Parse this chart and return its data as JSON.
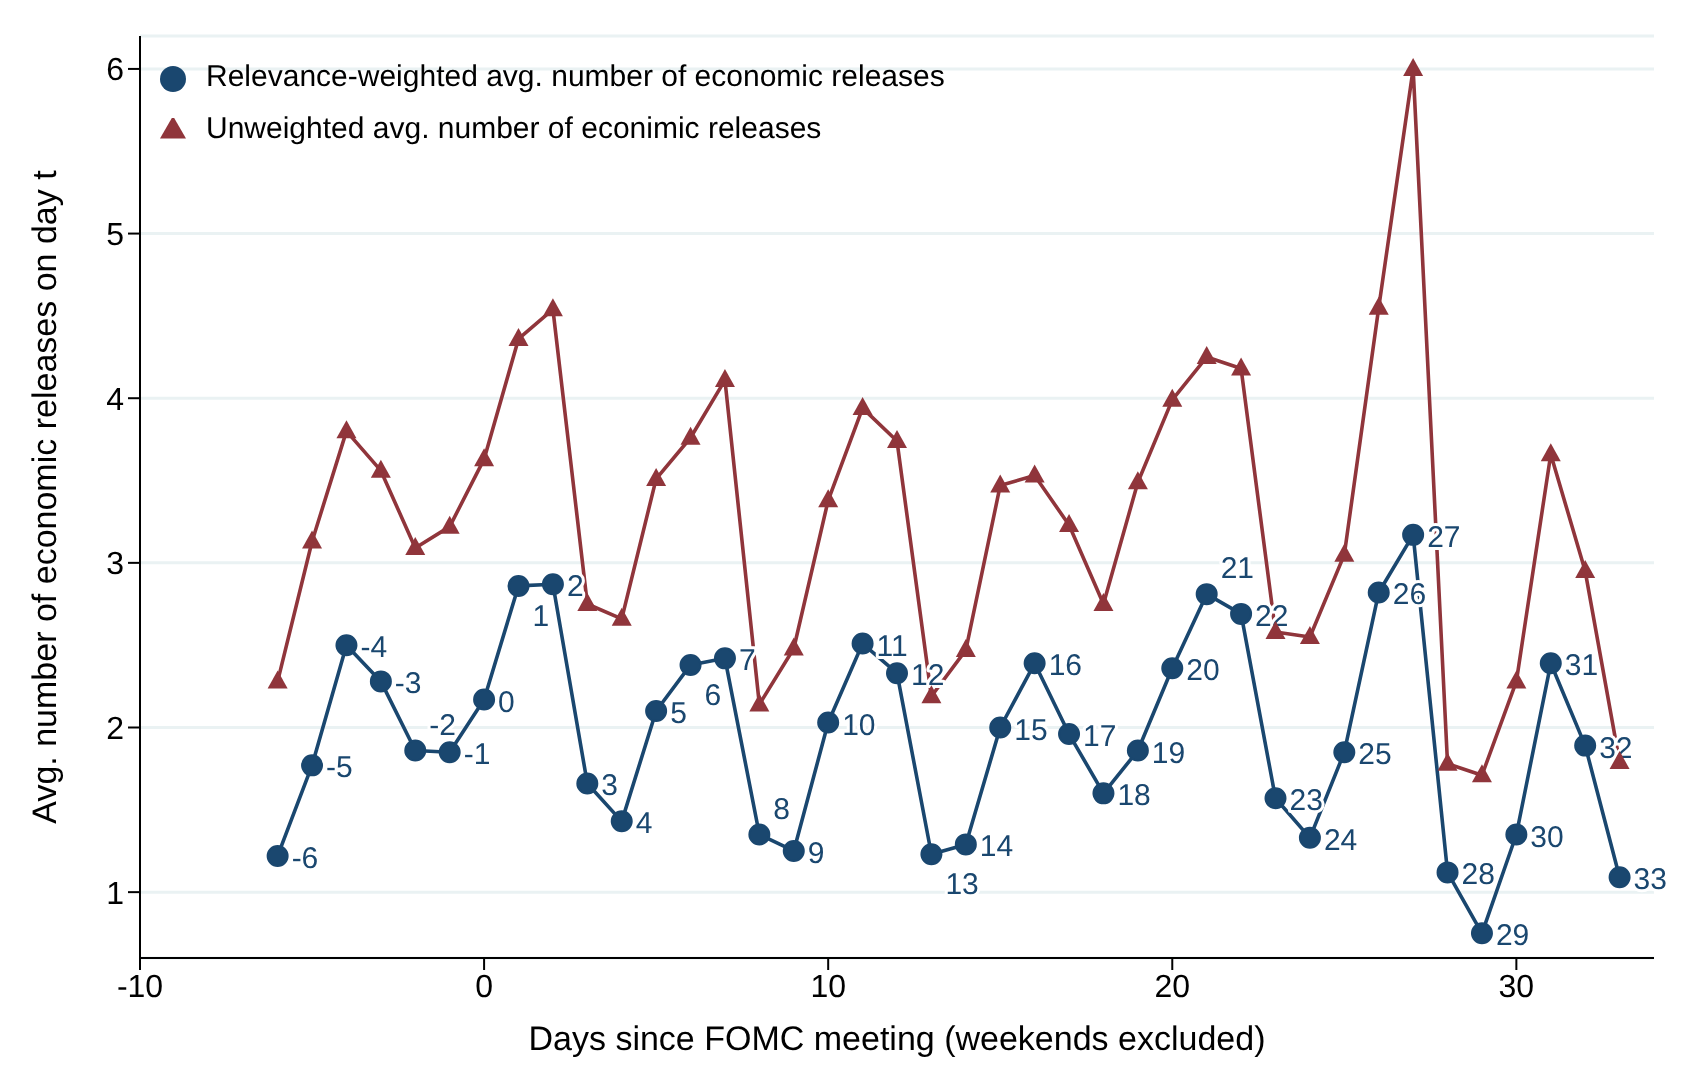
{
  "chart_data": {
    "type": "line",
    "xlabel": "Days since FOMC meeting (weekends excluded)",
    "ylabel": "Avg. number of economic releases on day t",
    "x": [
      -6,
      -5,
      -4,
      -3,
      -2,
      -1,
      0,
      1,
      2,
      3,
      4,
      5,
      6,
      7,
      8,
      9,
      10,
      11,
      12,
      13,
      14,
      15,
      16,
      17,
      18,
      19,
      20,
      21,
      22,
      23,
      24,
      25,
      26,
      27,
      28,
      29,
      30,
      31,
      32,
      33
    ],
    "series": [
      {
        "name": "Relevance-weighted avg. number of economic releases",
        "color": "#1a476f",
        "marker": "circle",
        "values": [
          1.22,
          1.77,
          2.5,
          2.28,
          1.86,
          1.85,
          2.17,
          2.86,
          2.87,
          1.66,
          1.43,
          2.1,
          2.38,
          2.42,
          1.35,
          1.25,
          2.03,
          2.51,
          2.33,
          1.23,
          1.29,
          2.0,
          2.39,
          1.96,
          1.6,
          1.86,
          2.36,
          2.81,
          2.69,
          1.57,
          1.33,
          1.85,
          2.82,
          3.17,
          1.12,
          0.75,
          1.35,
          2.39,
          1.89,
          1.09
        ]
      },
      {
        "name": "Unweighted avg. number of econimic releases",
        "color": "#90353b",
        "marker": "triangle",
        "values": [
          2.28,
          3.13,
          3.8,
          3.56,
          3.09,
          3.22,
          3.63,
          4.36,
          4.54,
          2.75,
          2.66,
          3.51,
          3.76,
          4.11,
          2.14,
          2.48,
          3.38,
          3.94,
          3.74,
          2.19,
          2.47,
          3.47,
          3.53,
          3.23,
          2.75,
          3.49,
          3.99,
          4.25,
          4.18,
          2.58,
          2.55,
          3.05,
          4.55,
          6.0,
          1.78,
          1.71,
          2.28,
          3.66,
          2.95,
          1.79
        ]
      }
    ],
    "annotations": [
      {
        "text": "-6",
        "x": -6,
        "y": 1.22
      },
      {
        "text": "-5",
        "x": -5,
        "y": 1.77
      },
      {
        "text": "-4",
        "x": -4,
        "y": 2.5
      },
      {
        "text": "-3",
        "x": -3,
        "y": 2.28
      },
      {
        "text": "-2",
        "x": -2,
        "y": 1.86
      },
      {
        "text": "-1",
        "x": -1,
        "y": 1.85
      },
      {
        "text": "0",
        "x": 0,
        "y": 2.17
      },
      {
        "text": "1",
        "x": 1,
        "y": 2.86
      },
      {
        "text": "2",
        "x": 2,
        "y": 2.87
      },
      {
        "text": "3",
        "x": 3,
        "y": 1.66
      },
      {
        "text": "4",
        "x": 4,
        "y": 1.43
      },
      {
        "text": "5",
        "x": 5,
        "y": 2.1
      },
      {
        "text": "6",
        "x": 6,
        "y": 2.38
      },
      {
        "text": "7",
        "x": 7,
        "y": 2.42
      },
      {
        "text": "8",
        "x": 8,
        "y": 1.35
      },
      {
        "text": "9",
        "x": 9,
        "y": 1.25
      },
      {
        "text": "10",
        "x": 10,
        "y": 2.03
      },
      {
        "text": "11",
        "x": 11,
        "y": 2.51
      },
      {
        "text": "12",
        "x": 12,
        "y": 2.33
      },
      {
        "text": "13",
        "x": 13,
        "y": 1.23
      },
      {
        "text": "14",
        "x": 14,
        "y": 1.29
      },
      {
        "text": "15",
        "x": 15,
        "y": 2.0
      },
      {
        "text": "16",
        "x": 16,
        "y": 2.39
      },
      {
        "text": "17",
        "x": 17,
        "y": 1.96
      },
      {
        "text": "18",
        "x": 18,
        "y": 1.6
      },
      {
        "text": "19",
        "x": 19,
        "y": 1.86
      },
      {
        "text": "20",
        "x": 20,
        "y": 2.36
      },
      {
        "text": "21",
        "x": 21,
        "y": 2.81
      },
      {
        "text": "22",
        "x": 22,
        "y": 2.69
      },
      {
        "text": "23",
        "x": 23,
        "y": 1.57
      },
      {
        "text": "24",
        "x": 24,
        "y": 1.33
      },
      {
        "text": "25",
        "x": 25,
        "y": 1.85
      },
      {
        "text": "26",
        "x": 26,
        "y": 2.82
      },
      {
        "text": "27",
        "x": 27,
        "y": 3.17
      },
      {
        "text": "28",
        "x": 28,
        "y": 1.12
      },
      {
        "text": "29",
        "x": 29,
        "y": 0.75
      },
      {
        "text": "30",
        "x": 30,
        "y": 1.35
      },
      {
        "text": "31",
        "x": 31,
        "y": 2.39
      },
      {
        "text": "32",
        "x": 32,
        "y": 1.89
      },
      {
        "text": "33",
        "x": 33,
        "y": 1.09
      }
    ],
    "xlim": [
      -10,
      34
    ],
    "xticks": [
      -10,
      0,
      10,
      20,
      30
    ],
    "ylim": [
      0.6,
      6.2
    ],
    "yticks": [
      1,
      2,
      3,
      4,
      5,
      6
    ],
    "grid": "y",
    "legend": "top left",
    "line_style": "solid"
  }
}
